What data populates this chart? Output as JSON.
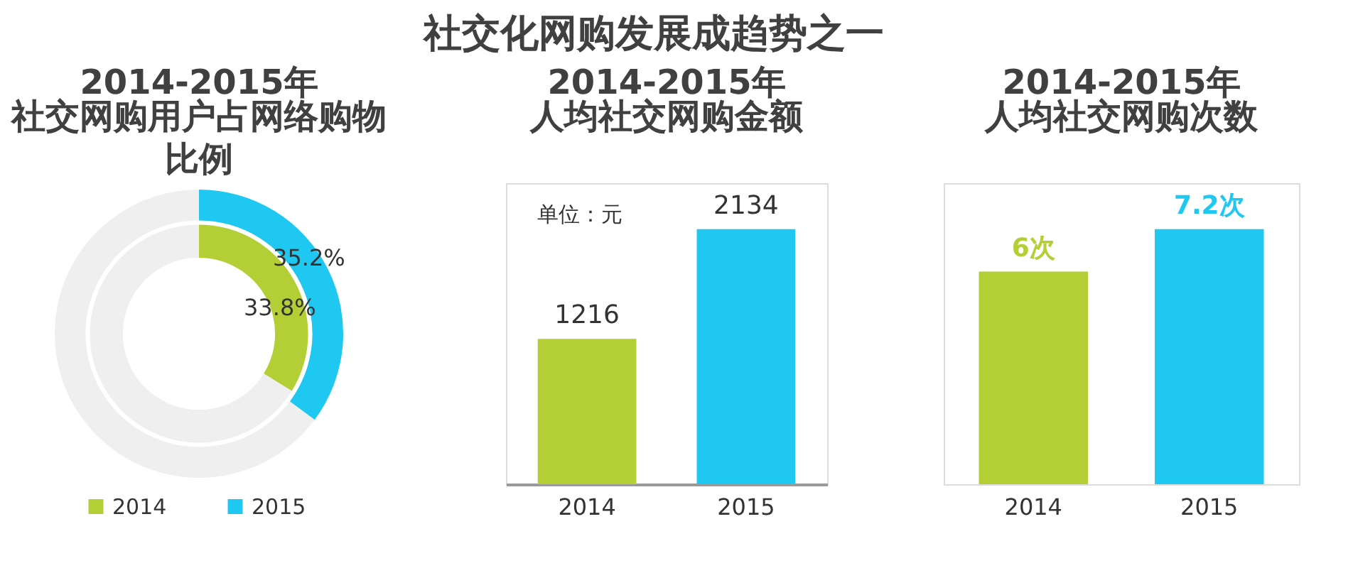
{
  "chart_data": [
    {
      "type": "other",
      "title": "社交化网购发展成趋势之一"
    },
    {
      "type": "donut",
      "title": "2014-2015年",
      "subtitle": "社交网购用户占网络购物比例",
      "categories": [
        null,
        null
      ],
      "series": [
        {
          "name": "2014",
          "colors": [
            "#b4cf36",
            "#efefef"
          ],
          "values": [
            33.8,
            66.2
          ],
          "value_labels": [
            "33.8%",
            null
          ]
        },
        {
          "name": "2015",
          "colors": [
            "#1fc8f0",
            "#efefef"
          ],
          "values": [
            35.2,
            64.8
          ],
          "value_labels": [
            "35.2%",
            null
          ]
        }
      ],
      "legend": "bottom"
    },
    {
      "type": "bar",
      "title": "2014-2015年",
      "subtitle": "人均社交网购金额",
      "categories": [
        "2014",
        "2015"
      ],
      "values": [
        1216,
        2134
      ],
      "colors": [
        "#b4cf36",
        "#1fc8f0"
      ],
      "data_labels": true,
      "annotations": [
        "单位：元"
      ]
    },
    {
      "type": "bar",
      "title": "2014-2015年",
      "subtitle": "人均社交网购次数",
      "categories": [
        "2014",
        "2015"
      ],
      "values": [
        6,
        7.2
      ],
      "colors": [
        "#b4cf36",
        "#1fc8f0"
      ],
      "value_labels": [
        "6次",
        "7.2次"
      ]
    }
  ]
}
